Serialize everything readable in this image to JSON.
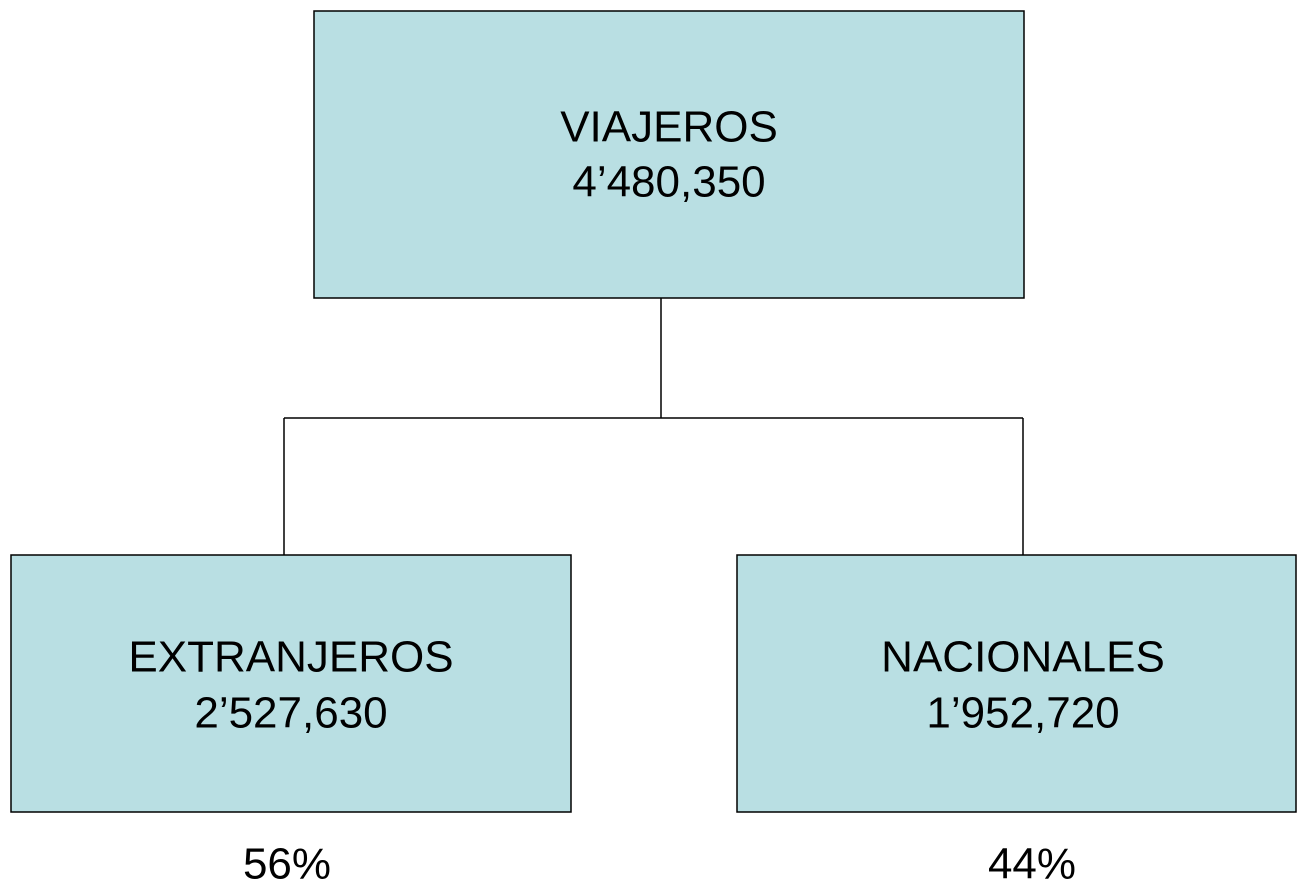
{
  "nodes": [
    {
      "label": "VIAJEROS",
      "value": "4’480,350"
    },
    {
      "label": "EXTRANJEROS",
      "value": "2’527,630",
      "share": "56%"
    },
    {
      "label": "NACIONALES",
      "value": "1’952,720",
      "share": "44%"
    }
  ]
}
